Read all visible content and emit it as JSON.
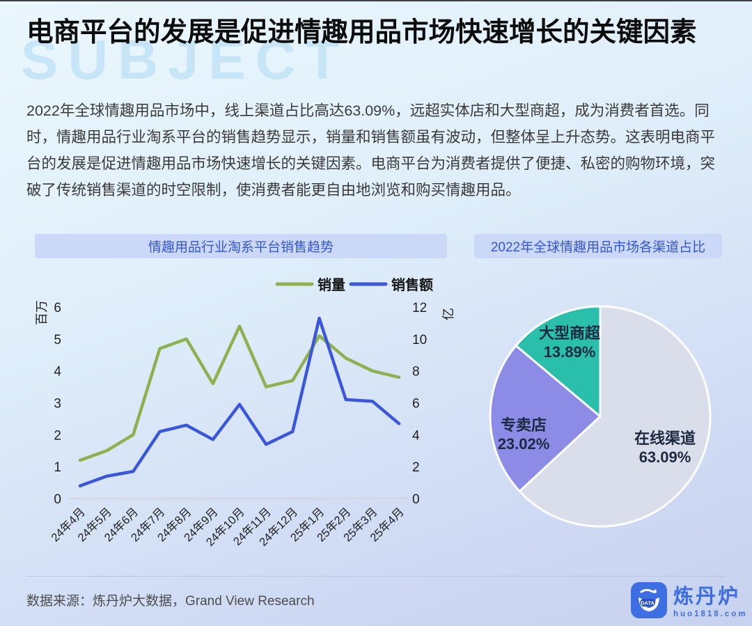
{
  "page": {
    "title": "电商平台的发展是促进情趣用品市场快速增长的关键因素",
    "watermark": "SUBJECT",
    "body": "2022年全球情趣用品市场中，线上渠道占比高达63.09%，远超实体店和大型商超，成为消费者首选。同时，情趣用品行业淘系平台的销售趋势显示，销量和销售额虽有波动，但整体呈上升态势。这表明电商平台的发展是促进情趣用品市场快速增长的关键因素。电商平台为消费者提供了便捷、私密的购物环境，突破了传统销售渠道的时空限制，使消费者能更自由地浏览和购买情趣用品。"
  },
  "sections": {
    "line_chart_header": "情趣用品行业淘系平台销售趋势",
    "pie_chart_header": "2022年全球情趣用品市场各渠道占比"
  },
  "footer": {
    "source": "数据来源：炼丹炉大数据，Grand View Research",
    "logo_name": "炼丹炉",
    "logo_url": "huo1818.com",
    "logo_badge": "DATA"
  },
  "colors": {
    "volume_line": "#8FB04F",
    "revenue_line": "#3A57DC",
    "pie_online": "#D9DEEA",
    "pie_specialty": "#8C8CE6",
    "pie_supermarket": "#2ABFAB",
    "accent_blue": "#3556D6",
    "logo_blue": "#3D6FE3"
  },
  "chart_data": [
    {
      "type": "line",
      "title": "情趣用品行业淘系平台销售趋势",
      "categories": [
        "24年4月",
        "24年5月",
        "24年6月",
        "24年7月",
        "24年8月",
        "24年9月",
        "24年10月",
        "24年11月",
        "24年12月",
        "25年1月",
        "25年2月",
        "25年3月",
        "25年4月"
      ],
      "series": [
        {
          "name": "销量",
          "axis": "left",
          "color": "#8FB04F",
          "values": [
            1.2,
            1.5,
            2.0,
            4.7,
            5.0,
            3.6,
            5.4,
            3.5,
            3.7,
            5.1,
            4.4,
            4.0,
            3.8
          ]
        },
        {
          "name": "销售额",
          "axis": "right",
          "color": "#3A57DC",
          "values": [
            0.8,
            1.4,
            1.7,
            4.2,
            4.6,
            3.7,
            5.9,
            3.4,
            4.2,
            11.3,
            6.2,
            6.1,
            4.7
          ]
        }
      ],
      "left_axis": {
        "label": "百万",
        "min": 0,
        "max": 6,
        "ticks": [
          0,
          1,
          2,
          3,
          4,
          5,
          6
        ]
      },
      "right_axis": {
        "label": "亿",
        "min": 0,
        "max": 12,
        "ticks": [
          0,
          2,
          4,
          6,
          8,
          10,
          12
        ]
      },
      "grid": false,
      "legend_position": "top"
    },
    {
      "type": "pie",
      "title": "2022年全球情趣用品市场各渠道占比",
      "start_angle_deg": 0,
      "direction": "clockwise",
      "labels_inside": true,
      "slices": [
        {
          "label": "在线渠道",
          "value": 63.09,
          "display": "63.09%",
          "color": "#D9DEEA"
        },
        {
          "label": "专卖店",
          "value": 23.02,
          "display": "23.02%",
          "color": "#8C8CE6"
        },
        {
          "label": "大型商超",
          "value": 13.89,
          "display": "13.89%",
          "color": "#2ABFAB"
        }
      ]
    }
  ]
}
